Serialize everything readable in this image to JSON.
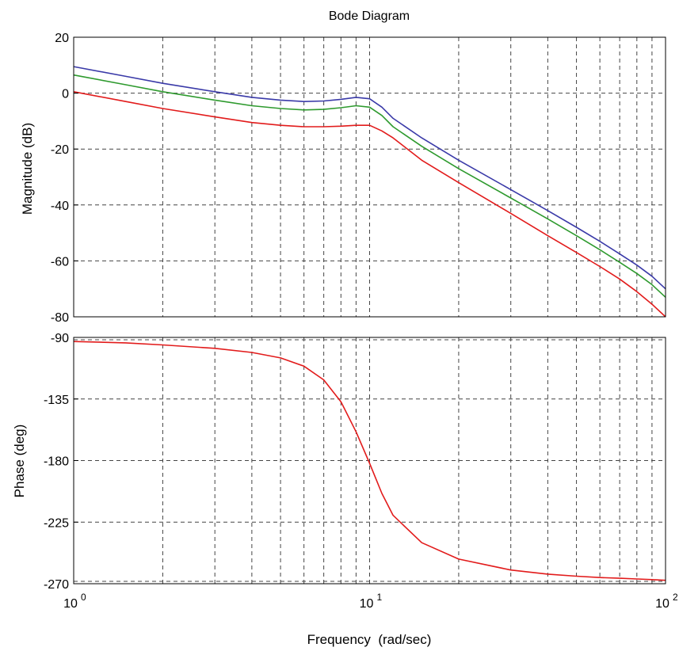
{
  "chart_data": [
    {
      "type": "line",
      "panel": "magnitude",
      "title": "Bode Diagram",
      "xlabel": "",
      "ylabel": "Magnitude (dB)",
      "xscale": "log",
      "xlim": [
        1,
        100
      ],
      "ylim": [
        -80,
        20
      ],
      "yticks": [
        20,
        0,
        -20,
        -40,
        -60,
        -80
      ],
      "grid": true,
      "series": [
        {
          "color": "#3a3aa8",
          "x": [
            1,
            1.5,
            2,
            3,
            4,
            5,
            6,
            7,
            8,
            9,
            10,
            11,
            12,
            15,
            20,
            30,
            40,
            50,
            60,
            70,
            80,
            90,
            100
          ],
          "y": [
            9.5,
            6,
            3.5,
            0.5,
            -1.5,
            -2.5,
            -3,
            -2.8,
            -2.2,
            -1.5,
            -2,
            -5,
            -9,
            -16,
            -24,
            -34.5,
            -42,
            -48,
            -53,
            -57.5,
            -61.5,
            -65.5,
            -70
          ]
        },
        {
          "color": "#2e9a2e",
          "x": [
            1,
            1.5,
            2,
            3,
            4,
            5,
            6,
            7,
            8,
            9,
            10,
            11,
            12,
            15,
            20,
            30,
            40,
            50,
            60,
            70,
            80,
            90,
            100
          ],
          "y": [
            6.5,
            3,
            0.5,
            -2.5,
            -4.5,
            -5.5,
            -6,
            -5.8,
            -5.2,
            -4.5,
            -5,
            -8,
            -12,
            -19,
            -27,
            -37.5,
            -45,
            -51,
            -56,
            -60.5,
            -64.5,
            -68.5,
            -73
          ]
        },
        {
          "color": "#e21b1b",
          "x": [
            1,
            1.5,
            2,
            3,
            4,
            5,
            6,
            7,
            8,
            9,
            10,
            11,
            12,
            15,
            20,
            30,
            40,
            50,
            60,
            70,
            80,
            90,
            100
          ],
          "y": [
            0.5,
            -3,
            -5.5,
            -8.5,
            -10.5,
            -11.5,
            -12,
            -12,
            -11.8,
            -11.5,
            -11.5,
            -13.5,
            -16,
            -24,
            -32,
            -43,
            -51,
            -57,
            -62,
            -66.5,
            -71,
            -75.5,
            -80
          ]
        }
      ]
    },
    {
      "type": "line",
      "panel": "phase",
      "title": "",
      "xlabel": "Frequency  (rad/sec)",
      "ylabel": "Phase (deg)",
      "xscale": "log",
      "xlim": [
        1,
        100
      ],
      "xtick_labels": [
        "10",
        "10",
        "10"
      ],
      "xtick_exponents": [
        "0",
        "1",
        "2"
      ],
      "ylim": [
        -270,
        -90
      ],
      "yticks": [
        -90,
        -135,
        -180,
        -225,
        -270
      ],
      "grid": true,
      "series": [
        {
          "color": "#e21b1b",
          "x": [
            1,
            1.5,
            2,
            3,
            4,
            5,
            6,
            7,
            8,
            9,
            10,
            11,
            12,
            15,
            20,
            30,
            40,
            50,
            60,
            70,
            80,
            90,
            100
          ],
          "y": [
            -93,
            -94,
            -95.5,
            -98,
            -101,
            -105,
            -111,
            -121,
            -137,
            -159,
            -182,
            -204,
            -220,
            -240,
            -252,
            -260,
            -263,
            -264.5,
            -265.5,
            -266,
            -266.5,
            -267,
            -267.5
          ]
        }
      ]
    }
  ]
}
